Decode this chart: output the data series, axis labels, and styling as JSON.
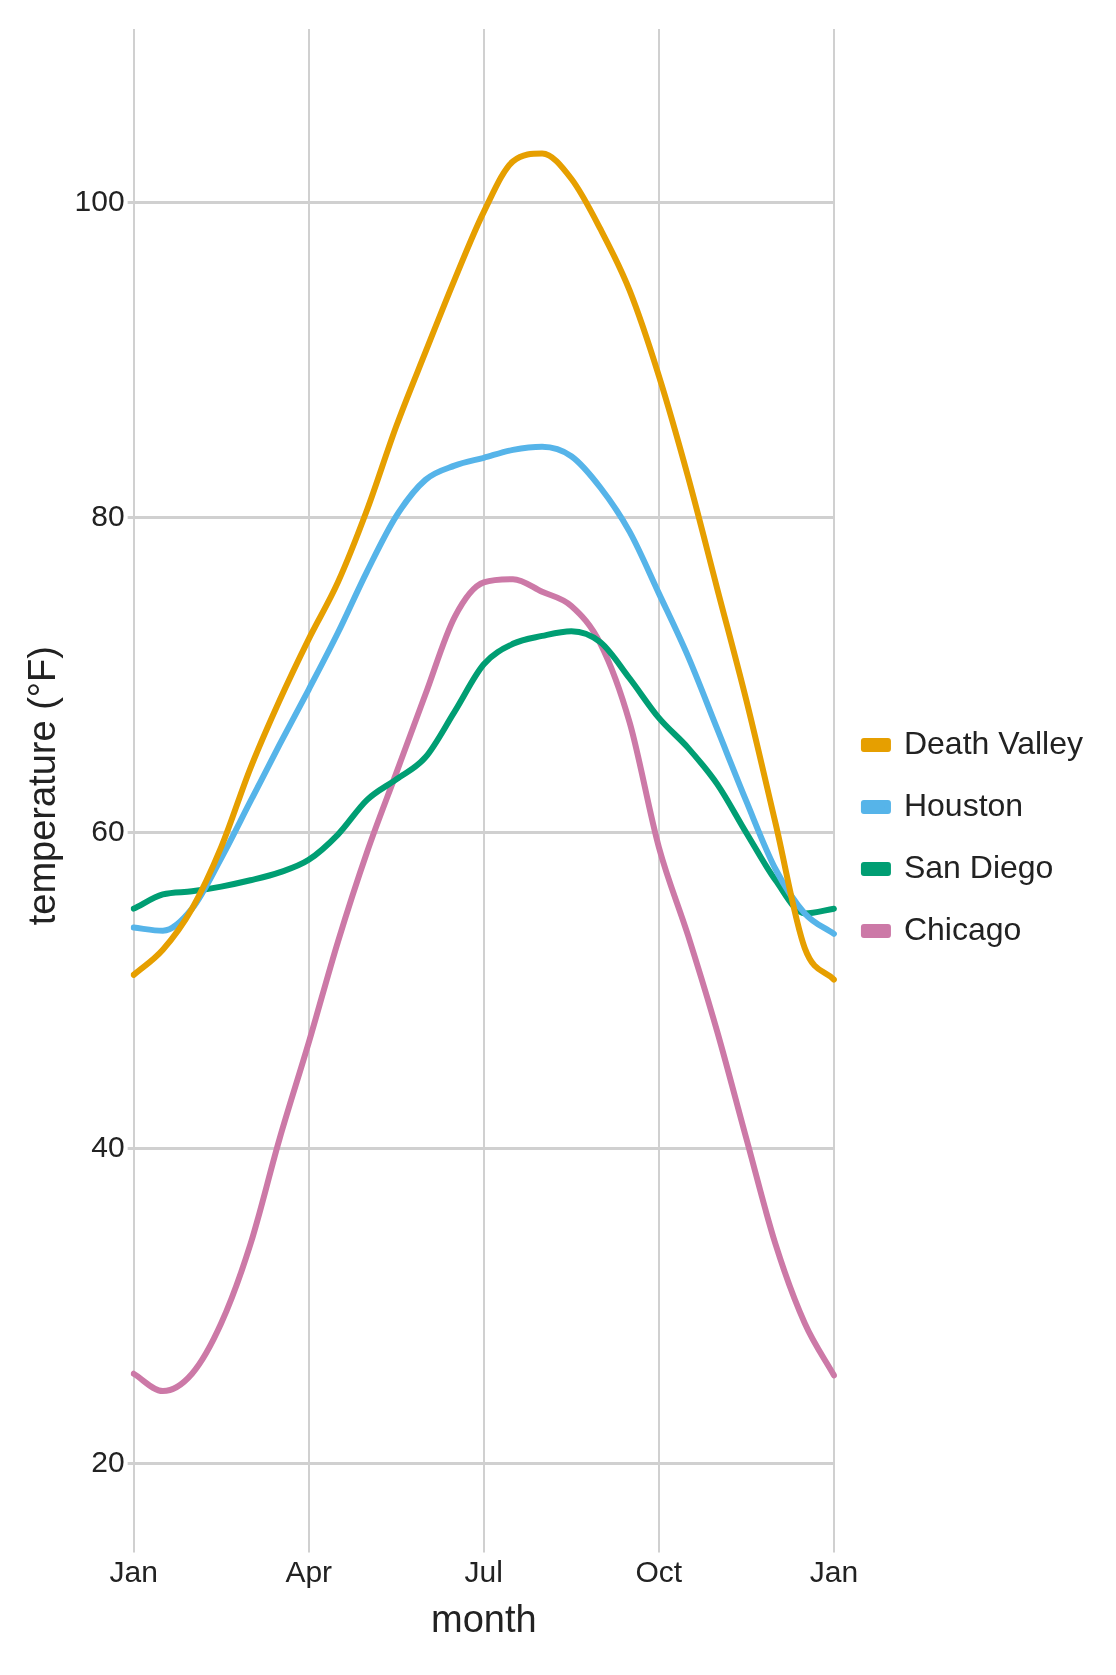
{
  "chart_data": {
    "type": "line",
    "xlabel": "month",
    "ylabel": "temperature (°F)",
    "categories": [
      "Jan",
      null,
      null,
      null,
      null,
      null,
      "Apr",
      null,
      null,
      null,
      null,
      null,
      "Jul",
      null,
      null,
      null,
      null,
      null,
      "Oct",
      null,
      null,
      null,
      null,
      null,
      "Jan"
    ],
    "series": [
      {
        "name": "Death Valley",
        "color": "#e69f00",
        "values": [
          51.0,
          52.6,
          55.2,
          59.1,
          64.1,
          68.4,
          72.3,
          75.9,
          80.5,
          85.8,
          90.5,
          95.1,
          99.4,
          102.6,
          103.1,
          101.5,
          98.3,
          94.4,
          89.0,
          82.6,
          75.5,
          68.4,
          60.6,
          52.7,
          50.7
        ]
      },
      {
        "name": "Houston",
        "color": "#56b4e9",
        "values": [
          54.0,
          53.8,
          55.2,
          58.4,
          62.0,
          65.6,
          69.1,
          72.7,
          76.6,
          80.1,
          82.4,
          83.3,
          83.8,
          84.3,
          84.5,
          83.9,
          81.9,
          79.1,
          75.2,
          71.2,
          66.6,
          62.0,
          57.7,
          54.9,
          53.6
        ]
      },
      {
        "name": "San Diego",
        "color": "#009e73",
        "values": [
          55.2,
          56.1,
          56.3,
          56.6,
          57.0,
          57.5,
          58.3,
          59.9,
          62.1,
          63.4,
          64.8,
          67.7,
          70.7,
          72.0,
          72.5,
          72.8,
          72.1,
          69.8,
          67.3,
          65.4,
          63.1,
          60.0,
          57.0,
          54.9,
          55.2
        ]
      },
      {
        "name": "Chicago",
        "color": "#cc79a7",
        "values": [
          25.7,
          24.6,
          25.7,
          28.9,
          33.9,
          40.6,
          46.7,
          53.1,
          58.8,
          63.8,
          68.8,
          73.7,
          75.9,
          76.1,
          75.3,
          74.4,
          72.0,
          67.0,
          59.1,
          53.5,
          47.4,
          40.6,
          33.9,
          28.9,
          25.6
        ]
      }
    ],
    "ylim": [
      15,
      111
    ],
    "yticks": [
      20,
      40,
      60,
      80,
      100
    ],
    "grid": true,
    "legend": "right",
    "marker": "none",
    "line_style": "solid"
  }
}
